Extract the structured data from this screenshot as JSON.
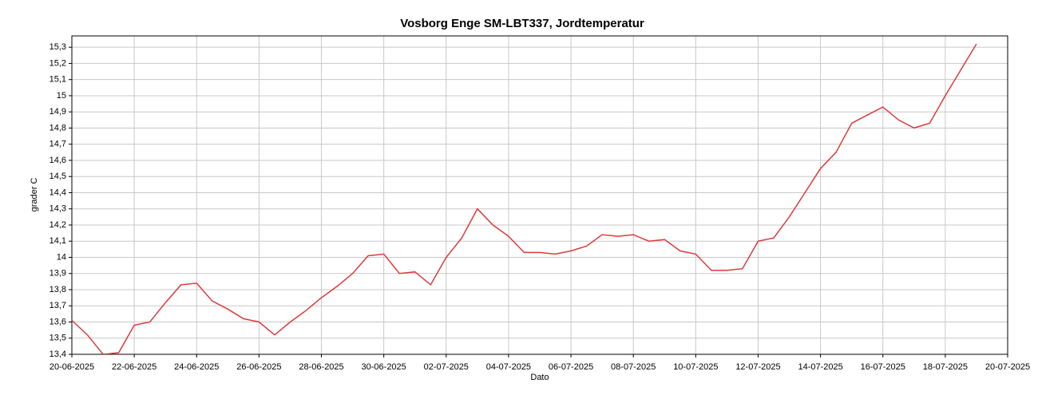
{
  "chart_data": {
    "type": "line",
    "title": "Vosborg Enge SM-LBT337, Jordtemperatur",
    "xlabel": "Dato",
    "ylabel": "grader C",
    "x": [
      "2025-06-20T00:00",
      "2025-06-20T12:00",
      "2025-06-21T00:00",
      "2025-06-21T12:00",
      "2025-06-22T00:00",
      "2025-06-22T12:00",
      "2025-06-23T00:00",
      "2025-06-23T12:00",
      "2025-06-24T00:00",
      "2025-06-24T12:00",
      "2025-06-25T00:00",
      "2025-06-25T12:00",
      "2025-06-26T00:00",
      "2025-06-26T12:00",
      "2025-06-27T00:00",
      "2025-06-27T12:00",
      "2025-06-28T00:00",
      "2025-06-28T12:00",
      "2025-06-29T00:00",
      "2025-06-29T12:00",
      "2025-06-30T00:00",
      "2025-06-30T12:00",
      "2025-07-01T00:00",
      "2025-07-01T12:00",
      "2025-07-02T00:00",
      "2025-07-02T12:00",
      "2025-07-03T00:00",
      "2025-07-03T12:00",
      "2025-07-04T00:00",
      "2025-07-04T12:00",
      "2025-07-05T00:00",
      "2025-07-05T12:00",
      "2025-07-06T00:00",
      "2025-07-06T12:00",
      "2025-07-07T00:00",
      "2025-07-07T12:00",
      "2025-07-08T00:00",
      "2025-07-08T12:00",
      "2025-07-09T00:00",
      "2025-07-09T12:00",
      "2025-07-10T00:00",
      "2025-07-10T12:00",
      "2025-07-11T00:00",
      "2025-07-11T12:00",
      "2025-07-12T00:00",
      "2025-07-12T12:00",
      "2025-07-13T00:00",
      "2025-07-13T12:00",
      "2025-07-14T00:00",
      "2025-07-14T12:00",
      "2025-07-15T00:00",
      "2025-07-15T12:00",
      "2025-07-16T00:00",
      "2025-07-16T12:00",
      "2025-07-17T00:00",
      "2025-07-17T12:00",
      "2025-07-18T00:00",
      "2025-07-18T12:00",
      "2025-07-19T00:00"
    ],
    "series": [
      {
        "name": "Jordtemperatur",
        "color": "#e0393b",
        "values": [
          13.61,
          13.52,
          13.4,
          13.41,
          13.58,
          13.6,
          13.72,
          13.83,
          13.84,
          13.73,
          13.68,
          13.62,
          13.6,
          13.52,
          13.6,
          13.67,
          13.75,
          13.82,
          13.9,
          14.01,
          14.02,
          13.9,
          13.91,
          13.83,
          14.0,
          14.12,
          14.3,
          14.2,
          14.13,
          14.03,
          14.03,
          14.02,
          14.04,
          14.07,
          14.14,
          14.13,
          14.14,
          14.1,
          14.11,
          14.04,
          14.02,
          13.92,
          13.92,
          13.93,
          14.1,
          14.12,
          14.25,
          14.4,
          14.55,
          14.65,
          14.83,
          14.88,
          14.93,
          14.85,
          14.8,
          14.83,
          15.0,
          15.16,
          15.32
        ]
      }
    ],
    "xlim": [
      "2025-06-20",
      "2025-07-20"
    ],
    "xticks": [
      {
        "value": "2025-06-20",
        "label": "20-06-2025"
      },
      {
        "value": "2025-06-22",
        "label": "22-06-2025"
      },
      {
        "value": "2025-06-24",
        "label": "24-06-2025"
      },
      {
        "value": "2025-06-26",
        "label": "26-06-2025"
      },
      {
        "value": "2025-06-28",
        "label": "28-06-2025"
      },
      {
        "value": "2025-06-30",
        "label": "30-06-2025"
      },
      {
        "value": "2025-07-02",
        "label": "02-07-2025"
      },
      {
        "value": "2025-07-04",
        "label": "04-07-2025"
      },
      {
        "value": "2025-07-06",
        "label": "06-07-2025"
      },
      {
        "value": "2025-07-08",
        "label": "08-07-2025"
      },
      {
        "value": "2025-07-10",
        "label": "10-07-2025"
      },
      {
        "value": "2025-07-12",
        "label": "12-07-2025"
      },
      {
        "value": "2025-07-14",
        "label": "14-07-2025"
      },
      {
        "value": "2025-07-16",
        "label": "16-07-2025"
      },
      {
        "value": "2025-07-18",
        "label": "18-07-2025"
      },
      {
        "value": "2025-07-20",
        "label": "20-07-2025"
      }
    ],
    "ylim": [
      13.4,
      15.37
    ],
    "yticks": [
      {
        "value": 13.4,
        "label": "13,4"
      },
      {
        "value": 13.5,
        "label": "13,5"
      },
      {
        "value": 13.6,
        "label": "13,6"
      },
      {
        "value": 13.7,
        "label": "13,7"
      },
      {
        "value": 13.8,
        "label": "13,8"
      },
      {
        "value": 13.9,
        "label": "13,9"
      },
      14,
      {
        "value": 14.1,
        "label": "14,1"
      },
      {
        "value": 14.2,
        "label": "14,2"
      },
      {
        "value": 14.3,
        "label": "14,3"
      },
      {
        "value": 14.4,
        "label": "14,4"
      },
      {
        "value": 14.5,
        "label": "14,5"
      },
      {
        "value": 14.6,
        "label": "14,6"
      },
      {
        "value": 14.7,
        "label": "14,7"
      },
      {
        "value": 14.8,
        "label": "14,8"
      },
      {
        "value": 14.9,
        "label": "14,9"
      },
      15,
      {
        "value": 15.1,
        "label": "15,1"
      },
      {
        "value": 15.2,
        "label": "15,2"
      },
      {
        "value": 15.3,
        "label": "15,3"
      }
    ],
    "grid": true
  }
}
